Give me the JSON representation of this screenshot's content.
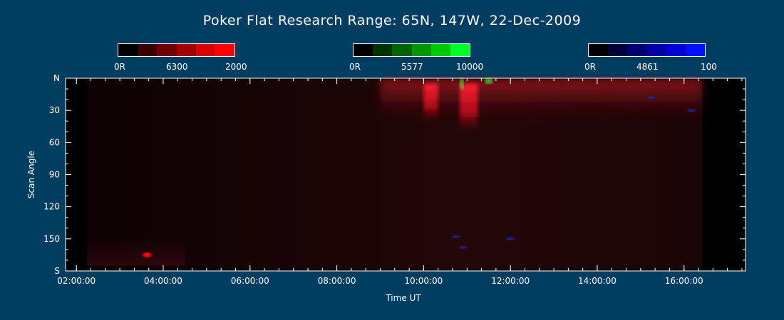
{
  "title": "Poker Flat Research Range: 65N, 147W, 22-Dec-2009",
  "colorbars": [
    {
      "name": "red-6300",
      "min_label": "0R",
      "mid_label": "6300",
      "max_label": "2000",
      "colors": [
        "#000000",
        "#3a0000",
        "#6e0000",
        "#a30000",
        "#d80000",
        "#ff0000"
      ]
    },
    {
      "name": "green-5577",
      "min_label": "0R",
      "mid_label": "5577",
      "max_label": "10000",
      "colors": [
        "#000000",
        "#003200",
        "#006400",
        "#009600",
        "#00c800",
        "#00ff28"
      ]
    },
    {
      "name": "blue-4861",
      "min_label": "0R",
      "mid_label": "4861",
      "max_label": "100",
      "colors": [
        "#000000",
        "#00003a",
        "#000070",
        "#0000a6",
        "#0000d6",
        "#0010ff"
      ]
    }
  ],
  "chart_data": {
    "type": "heatmap",
    "title": "Poker Flat Research Range: 65N, 147W, 22-Dec-2009",
    "xlabel": "Time UT",
    "ylabel": "Scan Angle",
    "x_ticks": [
      "02:00:00",
      "04:00:00",
      "06:00:00",
      "08:00:00",
      "10:00:00",
      "12:00:00",
      "14:00:00",
      "16:00:00"
    ],
    "y_ticks": [
      "N",
      "30",
      "60",
      "90",
      "120",
      "150",
      "S"
    ],
    "xlim": [
      "01:45:00",
      "17:25:00"
    ],
    "ylim": [
      0,
      180
    ],
    "data_range": [
      "02:15:00",
      "16:25:00"
    ],
    "features": [
      {
        "channel": "6300",
        "time_range": [
          "09:00:00",
          "16:25:00"
        ],
        "angle_range": [
          0,
          40
        ],
        "intensity": "moderate"
      },
      {
        "channel": "6300",
        "time_range": [
          "10:00:00",
          "10:20:00"
        ],
        "angle_range": [
          5,
          40
        ],
        "intensity": "high"
      },
      {
        "channel": "6300",
        "time_range": [
          "10:50:00",
          "11:15:00"
        ],
        "angle_range": [
          5,
          50
        ],
        "intensity": "high"
      },
      {
        "channel": "5577",
        "time_range": [
          "10:50:00",
          "10:55:00"
        ],
        "angle_range": [
          0,
          10
        ],
        "intensity": "high"
      },
      {
        "channel": "5577",
        "time_range": [
          "11:25:00",
          "11:35:00"
        ],
        "angle_range": [
          0,
          5
        ],
        "intensity": "moderate"
      },
      {
        "channel": "6300",
        "time_range": [
          "03:30:00",
          "03:45:00"
        ],
        "angle_range": [
          162,
          168
        ],
        "intensity": "high"
      }
    ]
  },
  "colors": {
    "background": "#003e61",
    "plot_bg": "#1a0000"
  }
}
